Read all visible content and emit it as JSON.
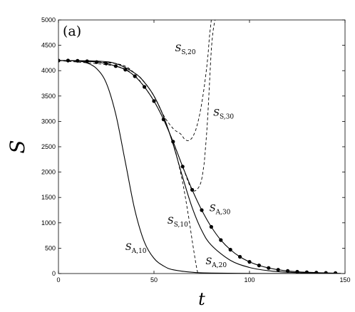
{
  "chart_data": {
    "type": "line",
    "title": "",
    "panel_label": "(a)",
    "xlabel": "t",
    "ylabel": "S",
    "xlim": [
      0,
      150
    ],
    "ylim": [
      0,
      5000
    ],
    "xticks": [
      0,
      50,
      100,
      150
    ],
    "yticks": [
      0,
      500,
      1000,
      1500,
      2000,
      2500,
      3000,
      3500,
      4000,
      4500,
      5000
    ],
    "grid": false,
    "series": [
      {
        "name": "S_{A,10}",
        "style": "solid",
        "markers": false,
        "x": [
          0,
          10,
          15,
          20,
          25,
          30,
          35,
          40,
          45,
          50,
          55,
          60,
          70,
          80,
          100,
          120,
          148
        ],
        "y": [
          4200,
          4190,
          4150,
          4040,
          3760,
          3140,
          2200,
          1250,
          620,
          300,
          150,
          75,
          25,
          10,
          3,
          1,
          0
        ]
      },
      {
        "name": "S_{A,20}",
        "style": "solid",
        "markers": false,
        "x": [
          0,
          20,
          30,
          40,
          45,
          50,
          55,
          60,
          65,
          70,
          75,
          80,
          90,
          100,
          110,
          120,
          130,
          148
        ],
        "y": [
          4200,
          4190,
          4140,
          3950,
          3770,
          3500,
          3100,
          2550,
          1900,
          1300,
          850,
          560,
          260,
          120,
          55,
          25,
          12,
          3
        ]
      },
      {
        "name": "S_{A,30}",
        "style": "solid",
        "markers": true,
        "x": [
          0,
          5,
          10,
          15,
          20,
          25,
          30,
          35,
          40,
          45,
          50,
          55,
          60,
          65,
          70,
          75,
          80,
          85,
          90,
          95,
          100,
          105,
          110,
          115,
          120,
          125,
          130,
          135,
          140,
          145
        ],
        "y": [
          4200,
          4200,
          4195,
          4185,
          4170,
          4140,
          4090,
          4020,
          3890,
          3680,
          3400,
          3040,
          2600,
          2110,
          1650,
          1250,
          920,
          660,
          470,
          330,
          230,
          160,
          110,
          75,
          50,
          35,
          25,
          18,
          12,
          8
        ]
      },
      {
        "name": "S_{S,10}",
        "style": "dashed",
        "markers": false,
        "x": [
          0,
          30,
          40,
          45,
          50,
          55,
          60,
          62,
          65,
          68,
          70,
          72,
          73
        ],
        "y": [
          4200,
          4140,
          3950,
          3770,
          3500,
          3100,
          2560,
          2300,
          1800,
          1150,
          650,
          180,
          0
        ]
      },
      {
        "name": "S_{S,20}",
        "style": "dashed",
        "markers": false,
        "x": [
          0,
          30,
          40,
          45,
          50,
          55,
          60,
          64,
          66,
          68,
          70,
          72,
          74,
          76,
          78,
          79,
          80
        ],
        "y": [
          4200,
          4140,
          3950,
          3770,
          3500,
          3120,
          2860,
          2750,
          2650,
          2620,
          2680,
          2850,
          3150,
          3600,
          4200,
          4650,
          5000
        ]
      },
      {
        "name": "S_{S,30}",
        "style": "dashed",
        "markers": false,
        "x": [
          0,
          30,
          40,
          45,
          50,
          55,
          60,
          65,
          70,
          74,
          76,
          77,
          78,
          79,
          80,
          81,
          82
        ],
        "y": [
          4200,
          4090,
          3890,
          3680,
          3400,
          3040,
          2600,
          2110,
          1650,
          1740,
          2100,
          2500,
          3000,
          3700,
          4400,
          4800,
          5000
        ]
      }
    ],
    "annotations": [
      {
        "main": "S",
        "sub": "A,10",
        "x": 35,
        "y": 460
      },
      {
        "main": "S",
        "sub": "S,10",
        "x": 57,
        "y": 980
      },
      {
        "main": "S",
        "sub": "A,20",
        "x": 77,
        "y": 180
      },
      {
        "main": "S",
        "sub": "A,30",
        "x": 79,
        "y": 1230
      },
      {
        "main": "S",
        "sub": "S,20",
        "x": 61,
        "y": 4380
      },
      {
        "main": "S",
        "sub": "S,30",
        "x": 81,
        "y": 3110
      }
    ]
  }
}
